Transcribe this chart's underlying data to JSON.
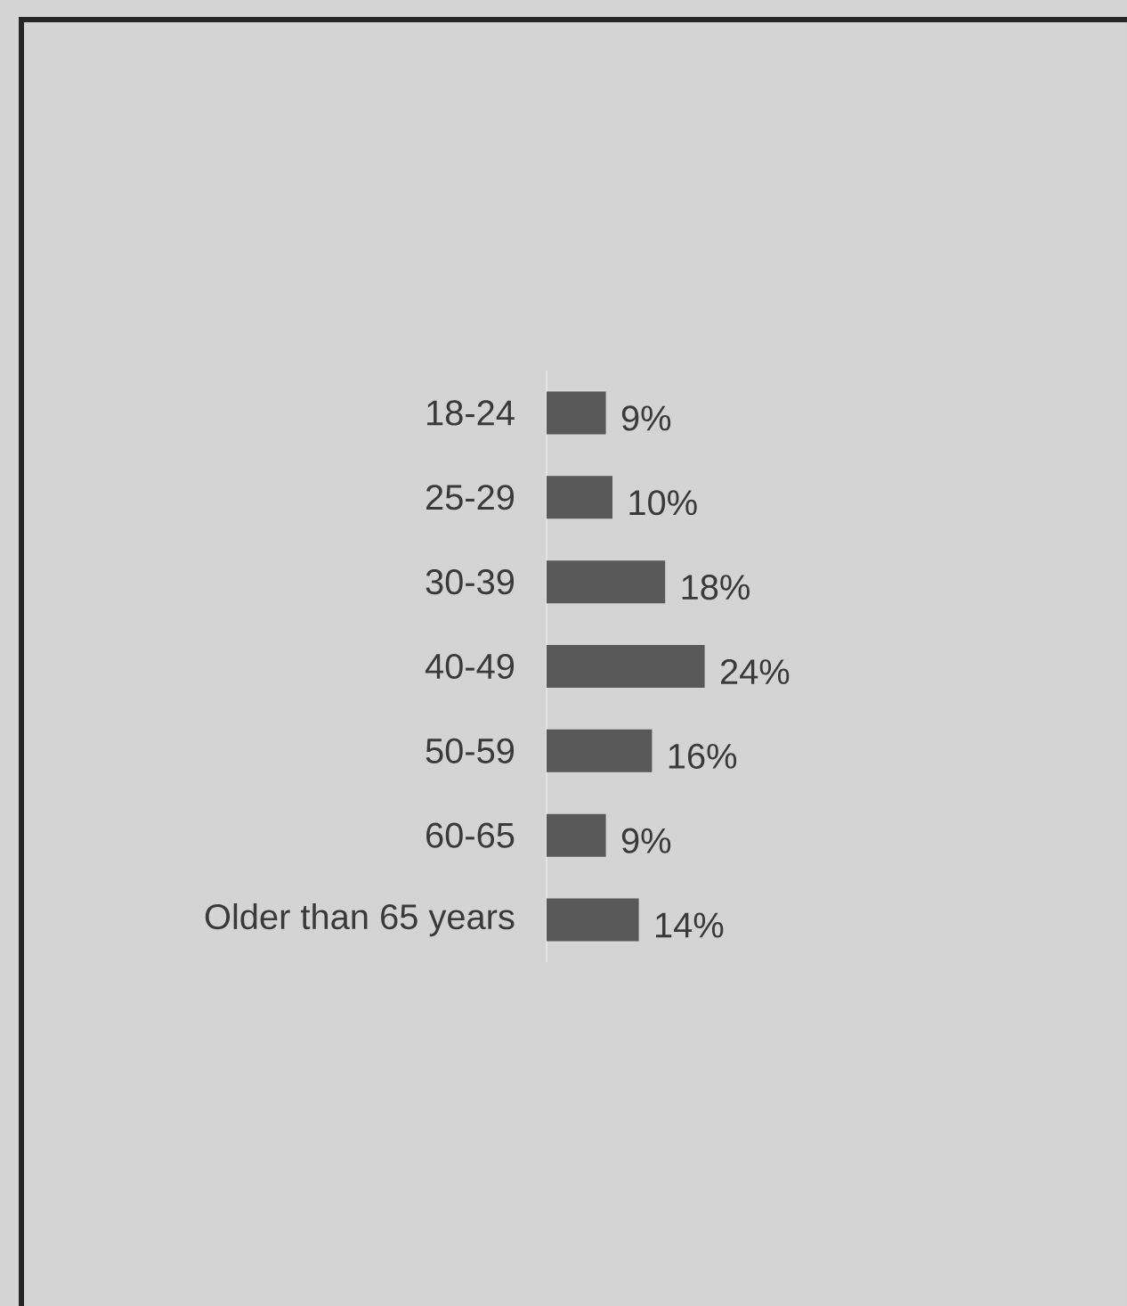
{
  "chart_data": {
    "type": "bar",
    "orientation": "horizontal",
    "color": "#595959",
    "categories": [
      "18-24",
      "25-29",
      "30-39",
      "40-49",
      "50-59",
      "60-65",
      "Older than 65 years"
    ],
    "values": [
      9,
      10,
      18,
      24,
      16,
      9,
      14
    ],
    "value_labels": [
      "9%",
      "10%",
      "18%",
      "24%",
      "16%",
      "9%",
      "14%"
    ]
  }
}
